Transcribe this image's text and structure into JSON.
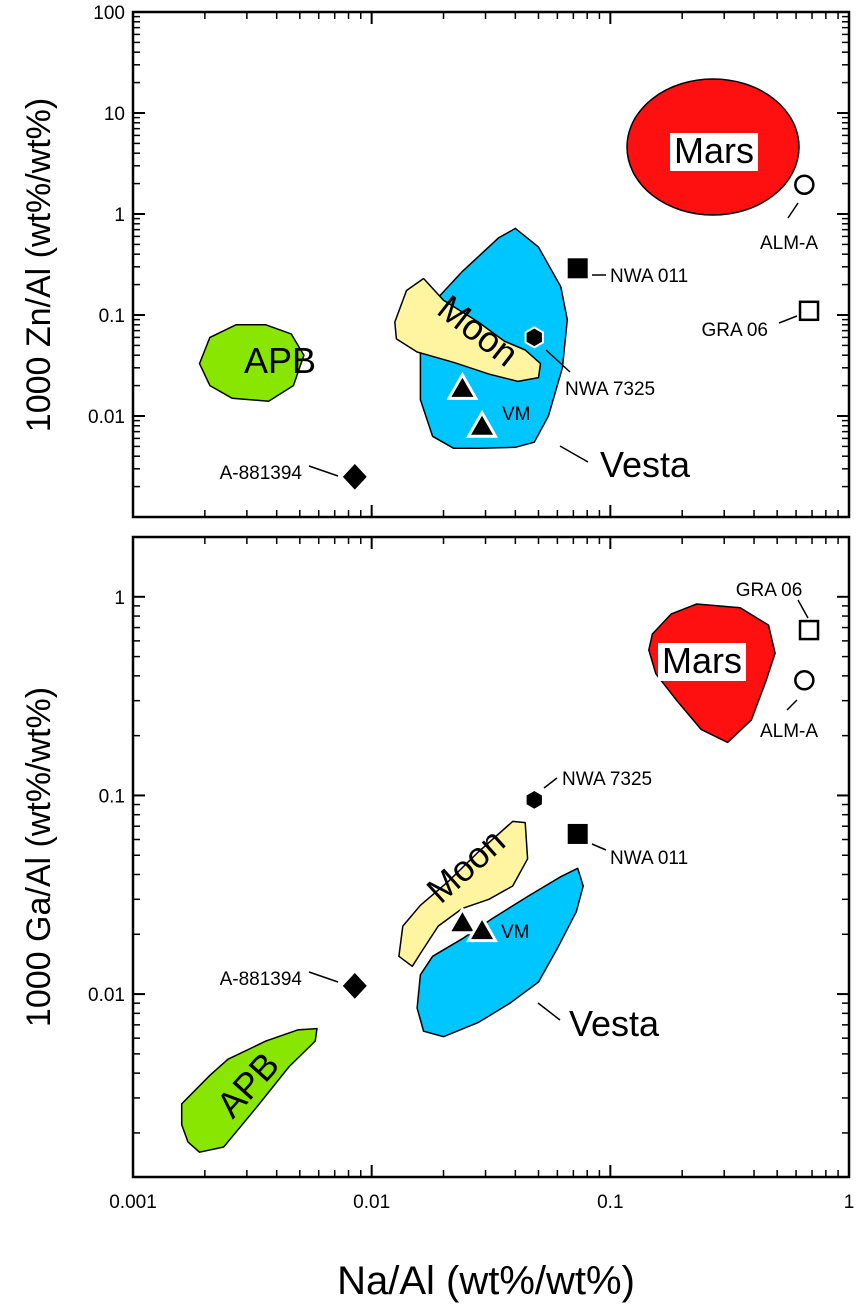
{
  "chart_data": [
    {
      "type": "scatter",
      "ylabel": "1000 Zn/Al (wt%/wt%)",
      "xscale": "log",
      "yscale": "log",
      "xlim": [
        0.001,
        1
      ],
      "ylim": [
        0.001,
        100
      ],
      "yticks": [
        "0.01",
        "0.1",
        "1",
        "10",
        "100"
      ],
      "colors": {
        "APB": "#88e600",
        "Moon": "#fff5a0",
        "Vesta": "#00c6ff",
        "Mars": "#ff1010"
      },
      "fields": [
        {
          "name": "APB",
          "color": "#88e600",
          "outline": [
            [
              0.0021,
              0.06
            ],
            [
              0.0027,
              0.08
            ],
            [
              0.0036,
              0.08
            ],
            [
              0.0046,
              0.065
            ],
            [
              0.0052,
              0.04
            ],
            [
              0.0047,
              0.02
            ],
            [
              0.0037,
              0.014
            ],
            [
              0.0026,
              0.015
            ],
            [
              0.0021,
              0.02
            ],
            [
              0.0019,
              0.033
            ]
          ]
        },
        {
          "name": "Vesta",
          "color": "#00c6ff",
          "outline": [
            [
              0.016,
              0.045
            ],
            [
              0.018,
              0.13
            ],
            [
              0.024,
              0.27
            ],
            [
              0.034,
              0.58
            ],
            [
              0.04,
              0.72
            ],
            [
              0.05,
              0.47
            ],
            [
              0.062,
              0.19
            ],
            [
              0.066,
              0.09
            ],
            [
              0.063,
              0.03
            ],
            [
              0.055,
              0.01
            ],
            [
              0.048,
              0.0055
            ],
            [
              0.04,
              0.0049
            ],
            [
              0.028,
              0.0048
            ],
            [
              0.022,
              0.0048
            ],
            [
              0.018,
              0.0063
            ],
            [
              0.016,
              0.0145
            ]
          ]
        },
        {
          "name": "Moon",
          "color": "#fff5a0",
          "outline": [
            [
              0.0125,
              0.085
            ],
            [
              0.014,
              0.175
            ],
            [
              0.0165,
              0.23
            ],
            [
              0.02,
              0.14
            ],
            [
              0.028,
              0.085
            ],
            [
              0.036,
              0.055
            ],
            [
              0.044,
              0.045
            ],
            [
              0.051,
              0.033
            ],
            [
              0.05,
              0.024
            ],
            [
              0.041,
              0.022
            ],
            [
              0.031,
              0.026
            ],
            [
              0.022,
              0.034
            ],
            [
              0.0155,
              0.043
            ],
            [
              0.0127,
              0.058
            ]
          ]
        },
        {
          "name": "Mars",
          "color": "#ff1010",
          "center": [
            0.25,
            5.5
          ]
        }
      ],
      "points": [
        {
          "label": "NWA 011",
          "x": 0.073,
          "y": 0.29,
          "marker": "square"
        },
        {
          "label": "NWA 7325",
          "x": 0.048,
          "y": 0.06,
          "marker": "hexagon"
        },
        {
          "label": "GRA 06",
          "x": 0.68,
          "y": 0.11,
          "marker": "open-square"
        },
        {
          "label": "ALM-A",
          "x": 0.65,
          "y": 1.95,
          "marker": "open-circle"
        },
        {
          "label": "A-881394",
          "x": 0.0085,
          "y": 0.0025,
          "marker": "diamond"
        },
        {
          "label": "",
          "x": 0.024,
          "y": 0.019,
          "marker": "triangle"
        },
        {
          "label": "VM",
          "x": 0.029,
          "y": 0.008,
          "marker": "triangle"
        }
      ]
    },
    {
      "type": "scatter",
      "xlabel": "Na/Al (wt%/wt%)",
      "ylabel": "1000 Ga/Al (wt%/wt%)",
      "xscale": "log",
      "yscale": "log",
      "xlim": [
        0.001,
        1
      ],
      "ylim": [
        0.0012,
        2
      ],
      "xticks": [
        "0.001",
        "0.01",
        "0.1",
        "1"
      ],
      "yticks": [
        "0.01",
        "0.1",
        "1"
      ],
      "colors": {
        "APB": "#88e600",
        "Moon": "#fff5a0",
        "Vesta": "#00c6ff",
        "Mars": "#ff1010"
      },
      "fields": [
        {
          "name": "APB",
          "color": "#88e600",
          "outline": [
            [
              0.0016,
              0.0028
            ],
            [
              0.0021,
              0.0039
            ],
            [
              0.0025,
              0.0047
            ],
            [
              0.0036,
              0.0058
            ],
            [
              0.0049,
              0.0066
            ],
            [
              0.0059,
              0.0067
            ],
            [
              0.0058,
              0.0058
            ],
            [
              0.0045,
              0.0043
            ],
            [
              0.0033,
              0.0027
            ],
            [
              0.0024,
              0.0017
            ],
            [
              0.0019,
              0.0016
            ],
            [
              0.0017,
              0.0018
            ],
            [
              0.0016,
              0.0022
            ]
          ]
        },
        {
          "name": "Moon",
          "color": "#fff5a0",
          "outline": [
            [
              0.013,
              0.0155
            ],
            [
              0.0135,
              0.022
            ],
            [
              0.016,
              0.028
            ],
            [
              0.021,
              0.037
            ],
            [
              0.028,
              0.052
            ],
            [
              0.039,
              0.074
            ],
            [
              0.044,
              0.073
            ],
            [
              0.045,
              0.048
            ],
            [
              0.039,
              0.035
            ],
            [
              0.031,
              0.03
            ],
            [
              0.024,
              0.027
            ],
            [
              0.019,
              0.022
            ],
            [
              0.016,
              0.016
            ],
            [
              0.0148,
              0.0138
            ]
          ]
        },
        {
          "name": "Vesta",
          "color": "#00c6ff",
          "outline": [
            [
              0.016,
              0.0125
            ],
            [
              0.018,
              0.0155
            ],
            [
              0.024,
              0.019
            ],
            [
              0.032,
              0.024
            ],
            [
              0.045,
              0.031
            ],
            [
              0.062,
              0.039
            ],
            [
              0.073,
              0.043
            ],
            [
              0.077,
              0.035
            ],
            [
              0.072,
              0.026
            ],
            [
              0.06,
              0.017
            ],
            [
              0.05,
              0.0115
            ],
            [
              0.038,
              0.009
            ],
            [
              0.028,
              0.0072
            ],
            [
              0.02,
              0.0061
            ],
            [
              0.0165,
              0.0065
            ],
            [
              0.0155,
              0.0085
            ]
          ]
        },
        {
          "name": "Mars",
          "color": "#ff1010",
          "outline": [
            [
              0.15,
              0.65
            ],
            [
              0.18,
              0.82
            ],
            [
              0.23,
              0.92
            ],
            [
              0.35,
              0.88
            ],
            [
              0.46,
              0.72
            ],
            [
              0.49,
              0.52
            ],
            [
              0.45,
              0.38
            ],
            [
              0.39,
              0.24
            ],
            [
              0.31,
              0.185
            ],
            [
              0.24,
              0.215
            ],
            [
              0.19,
              0.3
            ],
            [
              0.155,
              0.41
            ],
            [
              0.145,
              0.54
            ]
          ]
        }
      ],
      "points": [
        {
          "label": "GRA 06",
          "x": 0.68,
          "y": 0.68,
          "marker": "open-square"
        },
        {
          "label": "ALM-A",
          "x": 0.65,
          "y": 0.38,
          "marker": "open-circle"
        },
        {
          "label": "NWA 7325",
          "x": 0.048,
          "y": 0.095,
          "marker": "hexagon"
        },
        {
          "label": "NWA 011",
          "x": 0.073,
          "y": 0.064,
          "marker": "square"
        },
        {
          "label": "A-881394",
          "x": 0.0085,
          "y": 0.011,
          "marker": "diamond"
        },
        {
          "label": "",
          "x": 0.024,
          "y": 0.023,
          "marker": "triangle"
        },
        {
          "label": "VM",
          "x": 0.029,
          "y": 0.021,
          "marker": "triangle"
        }
      ]
    }
  ]
}
